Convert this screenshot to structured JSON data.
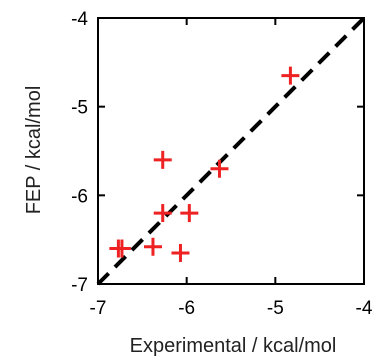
{
  "chart_data": {
    "type": "scatter",
    "xlabel": "Experimental / kcal/mol",
    "ylabel": "FEP / kcal/mol",
    "xlim": [
      -7,
      -4
    ],
    "ylim": [
      -7,
      -4
    ],
    "xticks": [
      "-7",
      "-6",
      "-5",
      "-4"
    ],
    "yticks": [
      "-4",
      "-5",
      "-6",
      "-7"
    ],
    "grid": false,
    "legend": "none",
    "marker": "plus",
    "marker_color": "#ee2222",
    "reference_line": {
      "style": "dashed",
      "color": "#000000",
      "from": [
        -7,
        -7
      ],
      "to": [
        -4,
        -4
      ]
    },
    "series": [
      {
        "x": [
          -4.83,
          -5.63,
          -6.27,
          -6.27,
          -5.97,
          -6.38,
          -6.73,
          -6.77,
          -6.07
        ],
        "y": [
          -4.65,
          -5.7,
          -5.6,
          -6.2,
          -6.2,
          -6.58,
          -6.6,
          -6.6,
          -6.65
        ]
      }
    ]
  }
}
